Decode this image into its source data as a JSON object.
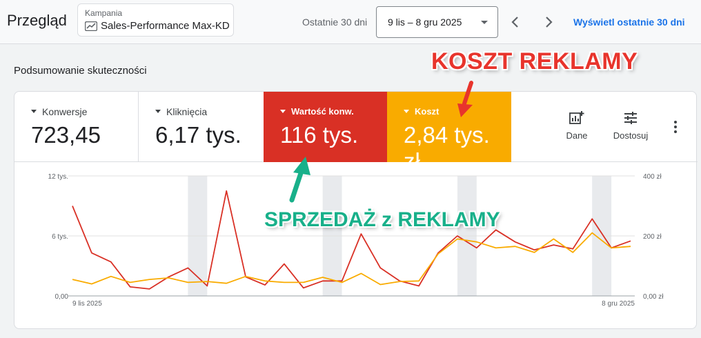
{
  "header": {
    "title": "Przegląd",
    "campaign_label": "Kampania",
    "campaign_name": "Sales-Performance Max-KD",
    "range_label": "Ostatnie 30 dni",
    "date_range": "9 lis – 8 gru 2025",
    "view_link": "Wyświetl ostatnie 30 dni"
  },
  "section_title": "Podsumowanie skuteczności",
  "metrics": [
    {
      "label": "Konwersje",
      "value": "723,45"
    },
    {
      "label": "Kliknięcia",
      "value": "6,17 tys."
    },
    {
      "label": "Wartość konw.",
      "value": "116 tys."
    },
    {
      "label": "Koszt",
      "value": "2,84 tys. zł"
    }
  ],
  "tools": {
    "dane_label": "Dane",
    "dostosuj_label": "Dostosuj"
  },
  "colors": {
    "red_series": "#d93025",
    "orange_series": "#f9ab00",
    "accent_blue": "#1a73e8",
    "annotation_red": "#e8342c",
    "annotation_green": "#18b08a"
  },
  "annotations": {
    "koszt": "KOSZT REKLAMY",
    "sprzedaz": "SPRZEDAŻ z REKLAMY"
  },
  "chart_data": {
    "type": "line",
    "x_start_label": "9 lis 2025",
    "x_end_label": "8 gru 2025",
    "left_axis_ticks": [
      "12 tys.",
      "6 tys.",
      "0,00"
    ],
    "right_axis_ticks": [
      "400 zł",
      "200 zł",
      "0,00 zł"
    ],
    "left_ylim": [
      0,
      12000
    ],
    "right_ylim": [
      0,
      400
    ],
    "weekend_bands": [
      [
        6,
        7
      ],
      [
        13,
        14
      ],
      [
        20,
        21
      ],
      [
        27,
        28
      ]
    ],
    "series": [
      {
        "axis": "left",
        "color": "#d93025",
        "values": [
          9000,
          4300,
          3400,
          900,
          700,
          1900,
          2800,
          1000,
          10500,
          1900,
          1100,
          3200,
          800,
          1500,
          1500,
          6200,
          2800,
          1500,
          1000,
          4300,
          6000,
          4800,
          6600,
          5400,
          4600,
          5100,
          4700,
          7700,
          4800,
          5500
        ]
      },
      {
        "axis": "right",
        "color": "#f9ab00",
        "values": [
          55,
          40,
          65,
          45,
          55,
          60,
          45,
          48,
          42,
          65,
          50,
          45,
          45,
          62,
          45,
          75,
          38,
          48,
          50,
          140,
          190,
          180,
          160,
          165,
          145,
          190,
          145,
          210,
          160,
          165
        ]
      }
    ]
  }
}
